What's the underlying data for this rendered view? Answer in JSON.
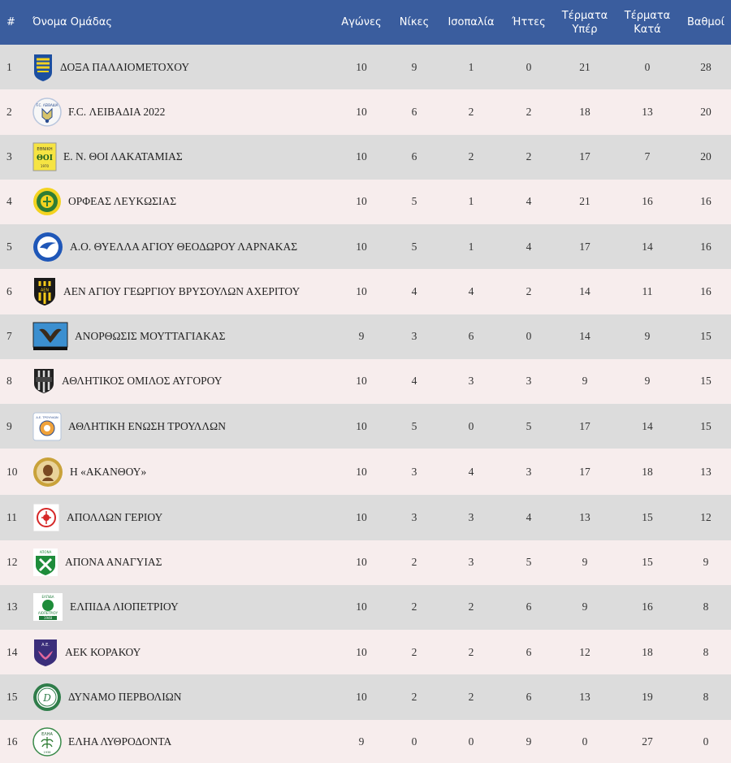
{
  "header": {
    "pos": "#",
    "team": "Όνομα Ομάδας",
    "played": "Αγώνες",
    "wins": "Νίκες",
    "draws": "Ισοπαλία",
    "losses": "Ήττες",
    "gf_line1": "Τέρματα",
    "gf_line2": "Υπέρ",
    "ga_line1": "Τέρματα",
    "ga_line2": "Κατά",
    "points": "Βαθμοί"
  },
  "rows": [
    {
      "pos": "1",
      "team": "ΔΟΞΑ ΠΑΛΑΙΟΜΕΤΟΧΟΥ",
      "played": "10",
      "wins": "9",
      "draws": "1",
      "losses": "0",
      "gf": "21",
      "ga": "0",
      "points": "28",
      "logo": "doxa-crest-icon"
    },
    {
      "pos": "2",
      "team": "F.C. ΛΕΙΒΑΔΙΑ 2022",
      "played": "10",
      "wins": "6",
      "draws": "2",
      "losses": "2",
      "gf": "18",
      "ga": "13",
      "points": "20",
      "logo": "leivadia-crest-icon"
    },
    {
      "pos": "3",
      "team": "Ε. Ν. ΘΟΙ ΛΑΚΑΤΑΜΙΑΣ",
      "played": "10",
      "wins": "6",
      "draws": "2",
      "losses": "2",
      "gf": "17",
      "ga": "7",
      "points": "20",
      "logo": "thoi-crest-icon"
    },
    {
      "pos": "4",
      "team": "ΟΡΦΕΑΣ ΛΕΥΚΩΣΙΑΣ",
      "played": "10",
      "wins": "5",
      "draws": "1",
      "losses": "4",
      "gf": "21",
      "ga": "16",
      "points": "16",
      "logo": "orfeas-crest-icon"
    },
    {
      "pos": "5",
      "team": "Α.Ο. ΘΥΕΛΛΑ ΑΓΙΟΥ ΘΕΟΔΩΡΟΥ ΛΑΡΝΑΚΑΣ",
      "played": "10",
      "wins": "5",
      "draws": "1",
      "losses": "4",
      "gf": "17",
      "ga": "14",
      "points": "16",
      "logo": "thyella-crest-icon"
    },
    {
      "pos": "6",
      "team": "ΑΕΝ ΑΓΙΟΥ ΓΕΩΡΓΙΟΥ ΒΡΥΣΟΥΛΩΝ ΑΧΕΡΙΤΟΥ",
      "played": "10",
      "wins": "4",
      "draws": "4",
      "losses": "2",
      "gf": "14",
      "ga": "11",
      "points": "16",
      "logo": "aen-crest-icon"
    },
    {
      "pos": "7",
      "team": "ΑΝΟΡΘΩΣΙΣ ΜΟΥΤΤΑΓΙΑΚΑΣ",
      "played": "9",
      "wins": "3",
      "draws": "6",
      "losses": "0",
      "gf": "14",
      "ga": "9",
      "points": "15",
      "logo": "anorthosis-crest-icon"
    },
    {
      "pos": "8",
      "team": "ΑΘΛΗΤΙΚΟΣ ΟΜΙΛΟΣ ΑΥΓΟΡΟΥ",
      "played": "10",
      "wins": "4",
      "draws": "3",
      "losses": "3",
      "gf": "9",
      "ga": "9",
      "points": "15",
      "logo": "avgorou-crest-icon"
    },
    {
      "pos": "9",
      "team": "ΑΘΛΗΤΙΚΗ ΕΝΩΣΗ ΤΡΟΥΛΛΩΝ",
      "played": "10",
      "wins": "5",
      "draws": "0",
      "losses": "5",
      "gf": "17",
      "ga": "14",
      "points": "15",
      "logo": "troullon-crest-icon"
    },
    {
      "pos": "10",
      "team": "Η «ΑΚΑΝΘΟΥ»",
      "played": "10",
      "wins": "3",
      "draws": "4",
      "losses": "3",
      "gf": "17",
      "ga": "18",
      "points": "13",
      "logo": "akanthou-crest-icon"
    },
    {
      "pos": "11",
      "team": "ΑΠΟΛΛΩΝ ΓΕΡΙΟΥ",
      "played": "10",
      "wins": "3",
      "draws": "3",
      "losses": "4",
      "gf": "13",
      "ga": "15",
      "points": "12",
      "logo": "apollon-crest-icon"
    },
    {
      "pos": "12",
      "team": "ΑΠΟΝΑ ΑΝΑΓΥΙΑΣ",
      "played": "10",
      "wins": "2",
      "draws": "3",
      "losses": "5",
      "gf": "9",
      "ga": "15",
      "points": "9",
      "logo": "apona-crest-icon"
    },
    {
      "pos": "13",
      "team": "ΕΛΠΙΔΑ ΛΙΟΠΕΤΡΙΟΥ",
      "played": "10",
      "wins": "2",
      "draws": "2",
      "losses": "6",
      "gf": "9",
      "ga": "16",
      "points": "8",
      "logo": "elpida-crest-icon"
    },
    {
      "pos": "14",
      "team": "ΑΕΚ ΚΟΡΑΚΟΥ",
      "played": "10",
      "wins": "2",
      "draws": "2",
      "losses": "6",
      "gf": "12",
      "ga": "18",
      "points": "8",
      "logo": "aek-korakou-crest-icon"
    },
    {
      "pos": "15",
      "team": "ΔΥΝΑΜΟ ΠΕΡΒΟΛΙΩΝ",
      "played": "10",
      "wins": "2",
      "draws": "2",
      "losses": "6",
      "gf": "13",
      "ga": "19",
      "points": "8",
      "logo": "dynamo-crest-icon"
    },
    {
      "pos": "16",
      "team": "ΕΛΗΑ ΛΥΘΡΟΔΟΝΤΑ",
      "played": "9",
      "wins": "0",
      "draws": "0",
      "losses": "9",
      "gf": "0",
      "ga": "27",
      "points": "0",
      "logo": "elia-crest-icon"
    }
  ]
}
